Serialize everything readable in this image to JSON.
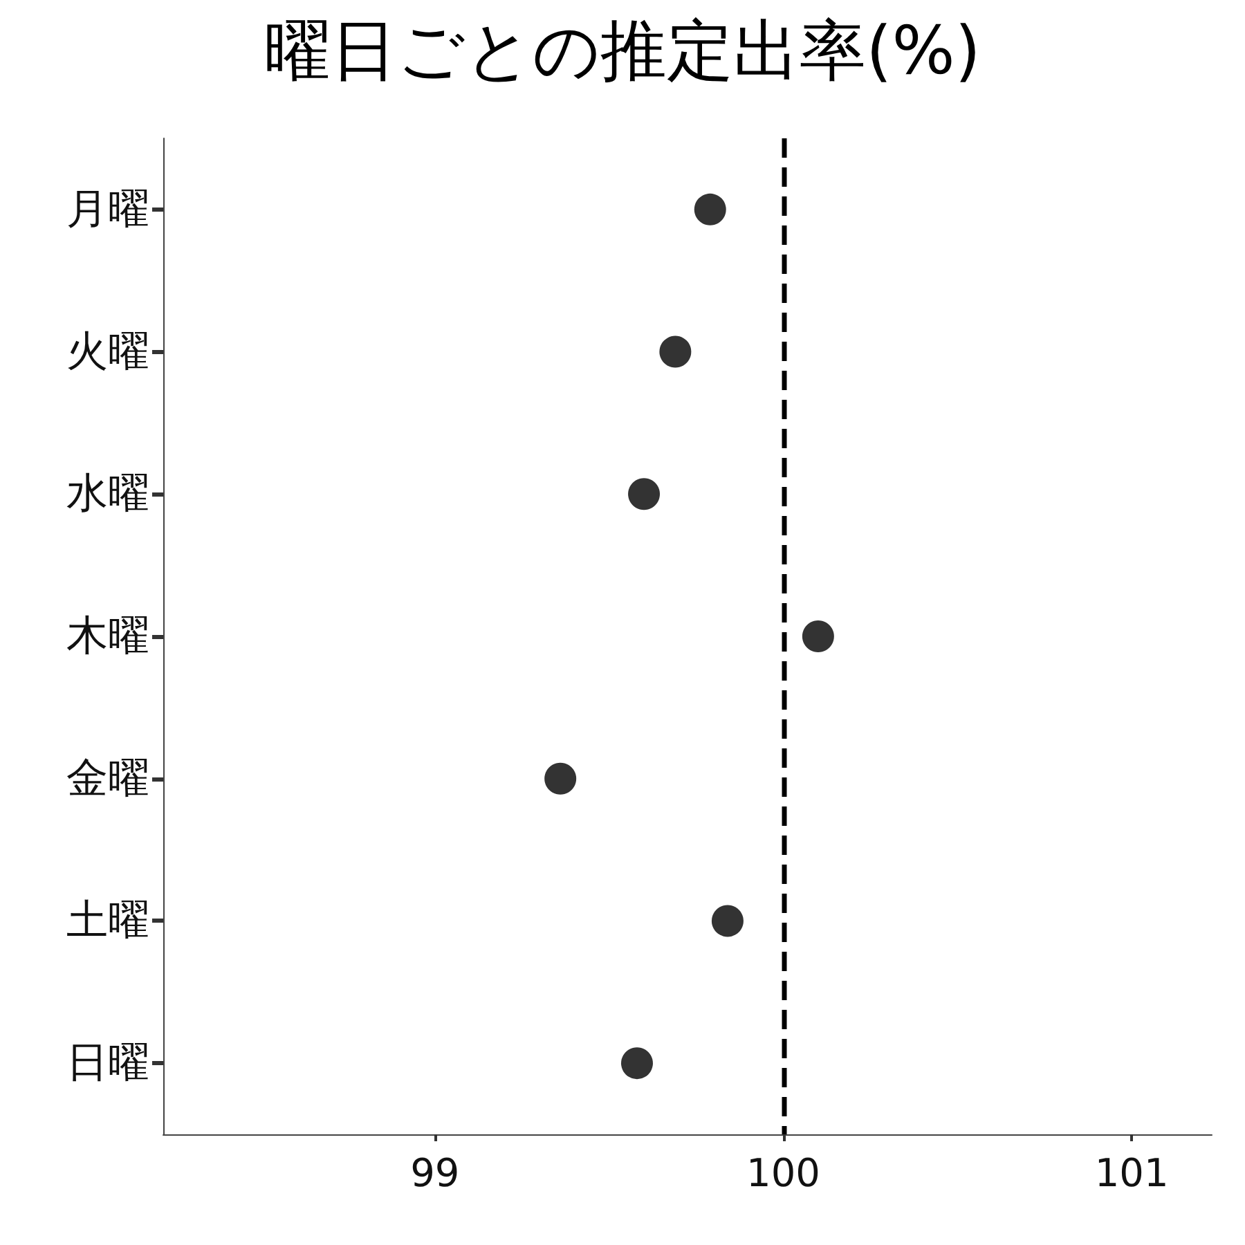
{
  "chart_data": {
    "type": "scatter",
    "title": "曜日ごとの推定出率(%)",
    "orientation": "horizontal",
    "categories": [
      "月曜",
      "火曜",
      "水曜",
      "木曜",
      "金曜",
      "土曜",
      "日曜"
    ],
    "values": [
      99.79,
      99.69,
      99.6,
      100.1,
      99.36,
      99.84,
      99.58
    ],
    "color": "#000000",
    "marker": "circle",
    "grid": false,
    "xlim": [
      98.22,
      101.23
    ],
    "xticks": [
      99,
      100,
      101
    ],
    "ref_lines": [
      {
        "axis": "x",
        "value": 100,
        "line_style": "dashed",
        "color": "#000000"
      }
    ]
  }
}
